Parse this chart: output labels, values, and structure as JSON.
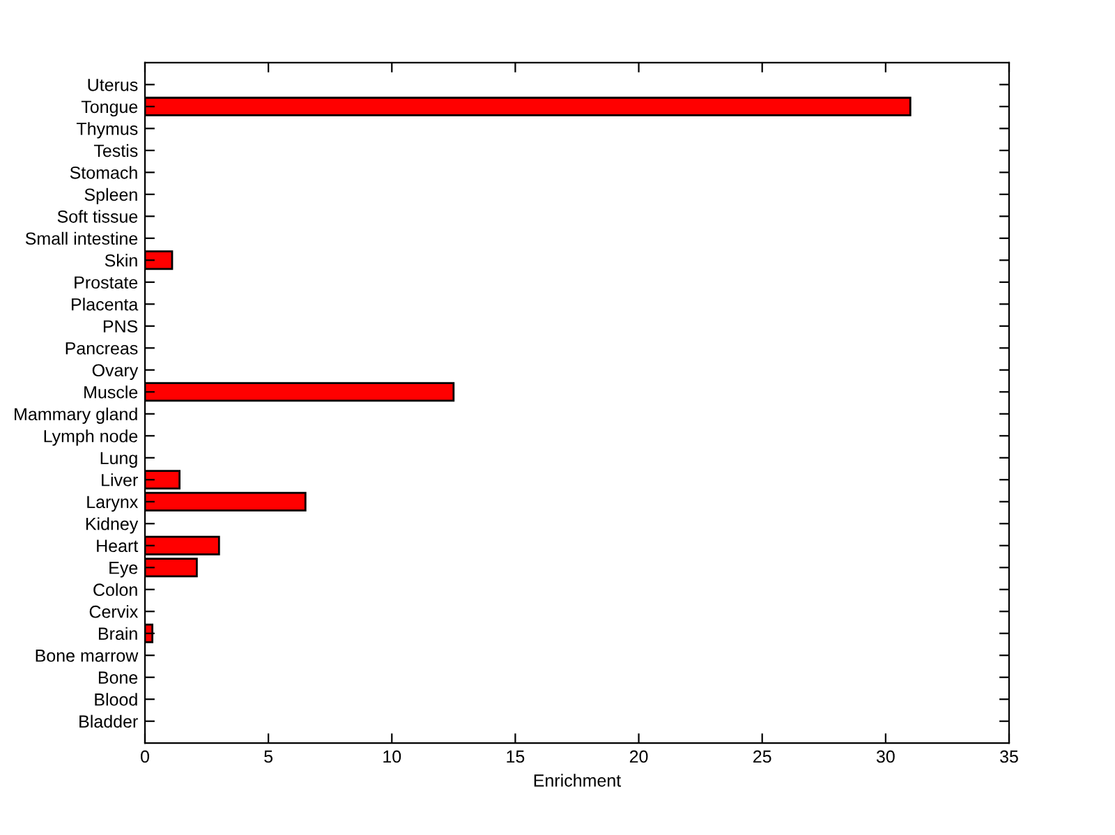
{
  "chart_data": {
    "type": "bar",
    "orientation": "horizontal",
    "xlabel": "Enrichment",
    "categories": [
      "Uterus",
      "Tongue",
      "Thymus",
      "Testis",
      "Stomach",
      "Spleen",
      "Soft tissue",
      "Small intestine",
      "Skin",
      "Prostate",
      "Placenta",
      "PNS",
      "Pancreas",
      "Ovary",
      "Muscle",
      "Mammary gland",
      "Lymph node",
      "Lung",
      "Liver",
      "Larynx",
      "Kidney",
      "Heart",
      "Eye",
      "Colon",
      "Cervix",
      "Brain",
      "Bone marrow",
      "Bone",
      "Blood",
      "Bladder"
    ],
    "values": [
      0,
      31.0,
      0,
      0,
      0,
      0,
      0,
      0,
      1.1,
      0,
      0,
      0,
      0,
      0,
      12.5,
      0,
      0,
      0,
      1.4,
      6.5,
      0,
      3.0,
      2.1,
      0,
      0,
      0.3,
      0,
      0,
      0,
      0
    ],
    "color": "#ff0000",
    "xlim": [
      0,
      35
    ],
    "xticks": [
      0,
      5,
      10,
      15,
      20,
      25,
      30,
      35
    ],
    "grid": false
  }
}
